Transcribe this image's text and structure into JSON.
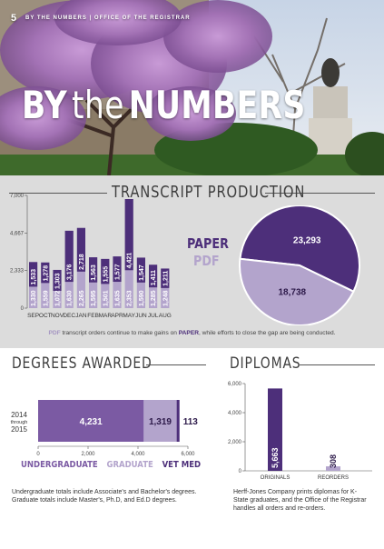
{
  "header": {
    "page_number": "5",
    "strip_text": "BY THE NUMBERS | OFFICE OF THE REGISTRAR",
    "title_big1": "BY",
    "title_small": "the",
    "title_big2": "NUMBERS"
  },
  "colors": {
    "dark_purple": "#4d2f7a",
    "light_purple": "#b3a4cc",
    "mid_purple": "#7b5aa3",
    "panel_gray": "#dcdcdc"
  },
  "transcript": {
    "title": "TRANSCRIPT PRODUCTION",
    "legend_paper": "PAPER",
    "legend_pdf": "PDF",
    "caption_pdf": "PDF",
    "caption_mid": " transcript orders continue to make gains on ",
    "caption_paper": "PAPER",
    "caption_end": ", while efforts to close the gap are being conducted."
  },
  "degrees": {
    "title": "DEGREES AWARDED",
    "year_top": "2014",
    "year_through": "through",
    "year_bottom": "2015",
    "legend_ug": "UNDERGRADUATE",
    "legend_grad": "GRADUATE",
    "legend_vet": "VET MED",
    "note": "Undergraduate totals include Associate's and Bachelor's degrees. Graduate totals include Master's, Ph.D, and Ed.D degrees."
  },
  "diplomas": {
    "title": "DIPLOMAS",
    "note": "Herff-Jones Company prints diplomas for K-State graduates, and the Office of the Registrar handles all orders and re-orders."
  },
  "chart_data": [
    {
      "type": "bar",
      "title": "TRANSCRIPT PRODUCTION",
      "stacked": true,
      "categories": [
        "SEP",
        "OCT",
        "NOV",
        "DEC",
        "JAN",
        "FEB",
        "MAR",
        "APR",
        "MAY",
        "JUN",
        "JUL",
        "AUG"
      ],
      "series": [
        {
          "name": "PAPER",
          "values": [
            1533,
            1278,
            1303,
            3176,
            2718,
            1563,
            1555,
            1577,
            4421,
            1547,
            1411,
            1211
          ],
          "color": "#4d2f7a"
        },
        {
          "name": "PDF",
          "values": [
            1330,
            1559,
            1072,
            1630,
            2265,
            1595,
            1501,
            1635,
            2353,
            1590,
            1285,
            1248
          ],
          "color": "#b3a4cc"
        }
      ],
      "ylim": [
        0,
        7000
      ],
      "yticks": [
        0,
        2333,
        4667,
        7000
      ],
      "ytick_labels": [
        "0",
        "2,333",
        "4,667",
        "7,000"
      ],
      "grid": false
    },
    {
      "type": "pie",
      "labels": [
        "PAPER",
        "PDF"
      ],
      "values": [
        23293,
        18738
      ],
      "value_labels": [
        "23,293",
        "18,738"
      ],
      "colors": [
        "#4d2f7a",
        "#b3a4cc"
      ]
    },
    {
      "type": "bar",
      "orientation": "horizontal",
      "stacked": true,
      "categories": [
        "2014 through 2015"
      ],
      "series": [
        {
          "name": "UNDERGRADUATE",
          "values": [
            4231
          ],
          "label": "4,231",
          "color": "#7b5aa3"
        },
        {
          "name": "GRADUATE",
          "values": [
            1319
          ],
          "label": "1,319",
          "color": "#b3a4cc"
        },
        {
          "name": "VET MED",
          "values": [
            113
          ],
          "label": "113",
          "color": "#4d2f7a"
        }
      ],
      "xlim": [
        0,
        6000
      ],
      "xticks": [
        0,
        2000,
        4000,
        6000
      ],
      "xtick_labels": [
        "0",
        "2,000",
        "4,000",
        "6,000"
      ]
    },
    {
      "type": "bar",
      "categories": [
        "ORIGINALS",
        "REORDERS"
      ],
      "values": [
        5663,
        308
      ],
      "value_labels": [
        "5,663",
        "308"
      ],
      "colors": [
        "#4d2f7a",
        "#b3a4cc"
      ],
      "ylim": [
        0,
        6000
      ],
      "yticks": [
        0,
        2000,
        4000,
        6000
      ],
      "ytick_labels": [
        "0",
        "2,000",
        "4,000",
        "6,000"
      ]
    }
  ]
}
